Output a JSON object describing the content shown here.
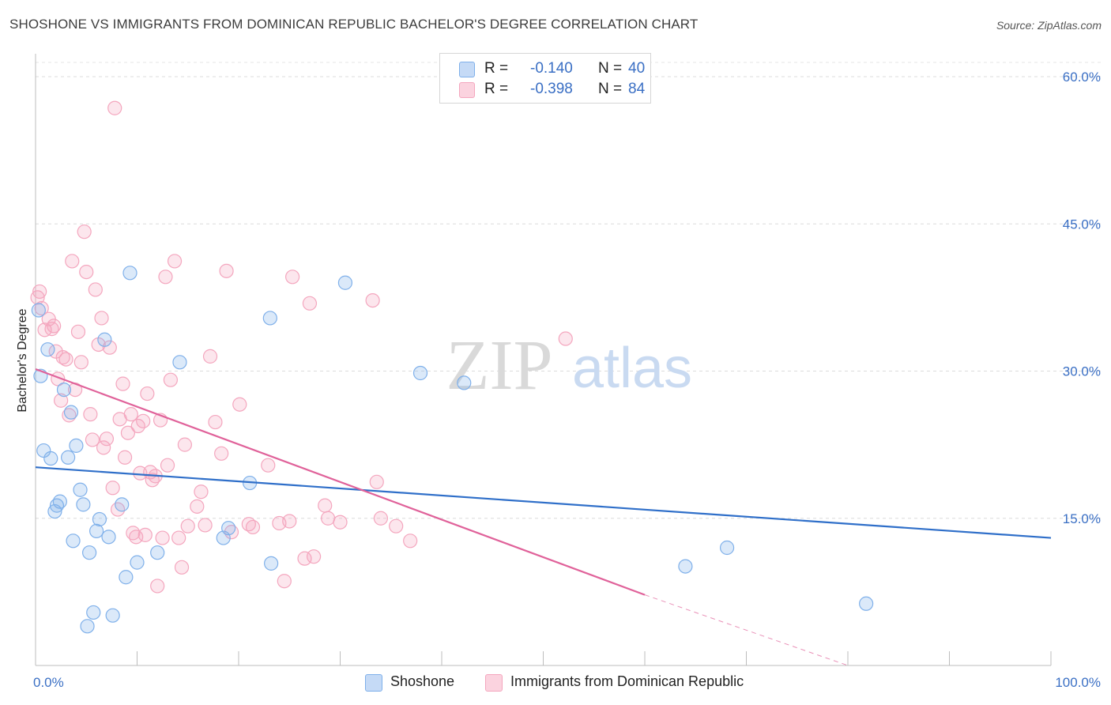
{
  "title": "SHOSHONE VS IMMIGRANTS FROM DOMINICAN REPUBLIC BACHELOR'S DEGREE CORRELATION CHART",
  "source": "Source: ZipAtlas.com",
  "watermark": {
    "zip": "ZIP",
    "atlas": "atlas"
  },
  "legend_top": {
    "rows": [
      {
        "r_label": "R =",
        "r_value": "-0.140",
        "n_label": "N =",
        "n_value": "40",
        "color": "#7fb0ea"
      },
      {
        "r_label": "R =",
        "r_value": "-0.398",
        "n_label": "N =",
        "n_value": "84",
        "color": "#f4a6be"
      }
    ]
  },
  "chart_data": {
    "type": "scatter",
    "ylabel": "Bachelor's Degree",
    "xlim": [
      0,
      100
    ],
    "ylim": [
      0,
      60
    ],
    "x_tick_labels": [
      "0.0%",
      "100.0%"
    ],
    "y_ticks": [
      15,
      30,
      45,
      60
    ],
    "y_tick_labels": [
      "15.0%",
      "30.0%",
      "45.0%",
      "60.0%"
    ],
    "grid": "horizontal dashed",
    "legend_position": "bottom",
    "series": [
      {
        "name": "Shoshone",
        "color": "#7fb0ea",
        "line_color": "#2f6fc9",
        "trend": {
          "x": [
            0,
            100
          ],
          "y": [
            20.2,
            13.0
          ]
        },
        "points": [
          [
            0.3,
            36.2
          ],
          [
            0.5,
            29.5
          ],
          [
            0.8,
            21.9
          ],
          [
            1.2,
            32.2
          ],
          [
            1.5,
            21.1
          ],
          [
            1.9,
            15.7
          ],
          [
            2.1,
            16.3
          ],
          [
            2.4,
            16.7
          ],
          [
            2.8,
            28.1
          ],
          [
            3.2,
            21.2
          ],
          [
            3.5,
            25.8
          ],
          [
            3.7,
            12.7
          ],
          [
            4.0,
            22.4
          ],
          [
            4.4,
            17.9
          ],
          [
            4.7,
            16.4
          ],
          [
            5.1,
            4.0
          ],
          [
            5.3,
            11.5
          ],
          [
            5.7,
            5.4
          ],
          [
            6.0,
            13.7
          ],
          [
            6.3,
            14.9
          ],
          [
            6.8,
            33.2
          ],
          [
            7.2,
            13.1
          ],
          [
            7.6,
            5.1
          ],
          [
            8.5,
            16.4
          ],
          [
            8.9,
            9.0
          ],
          [
            9.3,
            40.0
          ],
          [
            10.0,
            10.5
          ],
          [
            12.0,
            11.5
          ],
          [
            14.2,
            30.9
          ],
          [
            18.5,
            13.0
          ],
          [
            19.0,
            14.0
          ],
          [
            21.1,
            18.6
          ],
          [
            23.1,
            35.4
          ],
          [
            23.2,
            10.4
          ],
          [
            30.5,
            39.0
          ],
          [
            37.9,
            29.8
          ],
          [
            42.2,
            28.8
          ],
          [
            64.0,
            10.1
          ],
          [
            68.1,
            12.0
          ],
          [
            81.8,
            6.3
          ]
        ]
      },
      {
        "name": "Immigrants from Dominican Republic",
        "color": "#f4a6be",
        "line_color": "#e0629a",
        "trend": {
          "x": [
            0,
            60
          ],
          "y": [
            30.2,
            7.2
          ]
        },
        "trend_dashed": {
          "x": [
            60,
            80
          ],
          "y": [
            7.2,
            0.0
          ]
        },
        "points": [
          [
            0.2,
            37.5
          ],
          [
            0.4,
            38.1
          ],
          [
            0.6,
            36.4
          ],
          [
            0.9,
            34.2
          ],
          [
            1.3,
            35.3
          ],
          [
            1.6,
            34.3
          ],
          [
            1.8,
            34.6
          ],
          [
            2.0,
            32.0
          ],
          [
            2.2,
            29.2
          ],
          [
            2.5,
            27.0
          ],
          [
            2.7,
            31.4
          ],
          [
            3.0,
            31.2
          ],
          [
            3.3,
            25.5
          ],
          [
            3.6,
            41.2
          ],
          [
            3.9,
            28.1
          ],
          [
            4.2,
            34.0
          ],
          [
            4.5,
            30.9
          ],
          [
            4.8,
            44.2
          ],
          [
            5.0,
            40.1
          ],
          [
            5.4,
            25.6
          ],
          [
            5.6,
            23.0
          ],
          [
            5.9,
            38.3
          ],
          [
            6.2,
            32.7
          ],
          [
            6.5,
            35.4
          ],
          [
            6.7,
            22.2
          ],
          [
            7.0,
            23.1
          ],
          [
            7.3,
            32.4
          ],
          [
            7.6,
            18.1
          ],
          [
            7.8,
            56.8
          ],
          [
            8.1,
            15.9
          ],
          [
            8.3,
            25.1
          ],
          [
            8.6,
            28.7
          ],
          [
            8.8,
            21.2
          ],
          [
            9.1,
            23.7
          ],
          [
            9.4,
            25.6
          ],
          [
            9.6,
            13.5
          ],
          [
            9.9,
            13.1
          ],
          [
            10.1,
            24.4
          ],
          [
            10.3,
            19.6
          ],
          [
            10.6,
            24.9
          ],
          [
            10.8,
            13.3
          ],
          [
            11.0,
            27.7
          ],
          [
            11.3,
            19.7
          ],
          [
            11.5,
            18.9
          ],
          [
            11.8,
            19.3
          ],
          [
            12.0,
            8.1
          ],
          [
            12.3,
            25.0
          ],
          [
            12.5,
            13.0
          ],
          [
            12.8,
            39.6
          ],
          [
            13.0,
            20.4
          ],
          [
            13.3,
            29.1
          ],
          [
            13.7,
            41.2
          ],
          [
            14.1,
            13.0
          ],
          [
            14.4,
            10.0
          ],
          [
            14.7,
            22.5
          ],
          [
            15.0,
            14.2
          ],
          [
            15.9,
            16.2
          ],
          [
            16.3,
            17.7
          ],
          [
            16.7,
            14.3
          ],
          [
            17.2,
            31.5
          ],
          [
            17.7,
            24.8
          ],
          [
            18.3,
            21.6
          ],
          [
            18.8,
            40.2
          ],
          [
            19.3,
            13.6
          ],
          [
            20.1,
            26.6
          ],
          [
            21.0,
            14.4
          ],
          [
            21.4,
            14.1
          ],
          [
            22.9,
            20.4
          ],
          [
            24.0,
            14.5
          ],
          [
            24.5,
            8.6
          ],
          [
            25.0,
            14.7
          ],
          [
            25.3,
            39.6
          ],
          [
            26.5,
            10.9
          ],
          [
            27.0,
            36.9
          ],
          [
            27.4,
            11.1
          ],
          [
            28.5,
            16.3
          ],
          [
            28.8,
            15.0
          ],
          [
            30.0,
            14.6
          ],
          [
            33.2,
            37.2
          ],
          [
            33.6,
            18.7
          ],
          [
            34.0,
            15.0
          ],
          [
            35.5,
            14.2
          ],
          [
            36.9,
            12.7
          ],
          [
            52.2,
            33.3
          ]
        ]
      }
    ]
  },
  "legend_bottom": [
    {
      "label": "Shoshone",
      "color": "#7fb0ea"
    },
    {
      "label": "Immigrants from Dominican Republic",
      "color": "#f4a6be"
    }
  ]
}
